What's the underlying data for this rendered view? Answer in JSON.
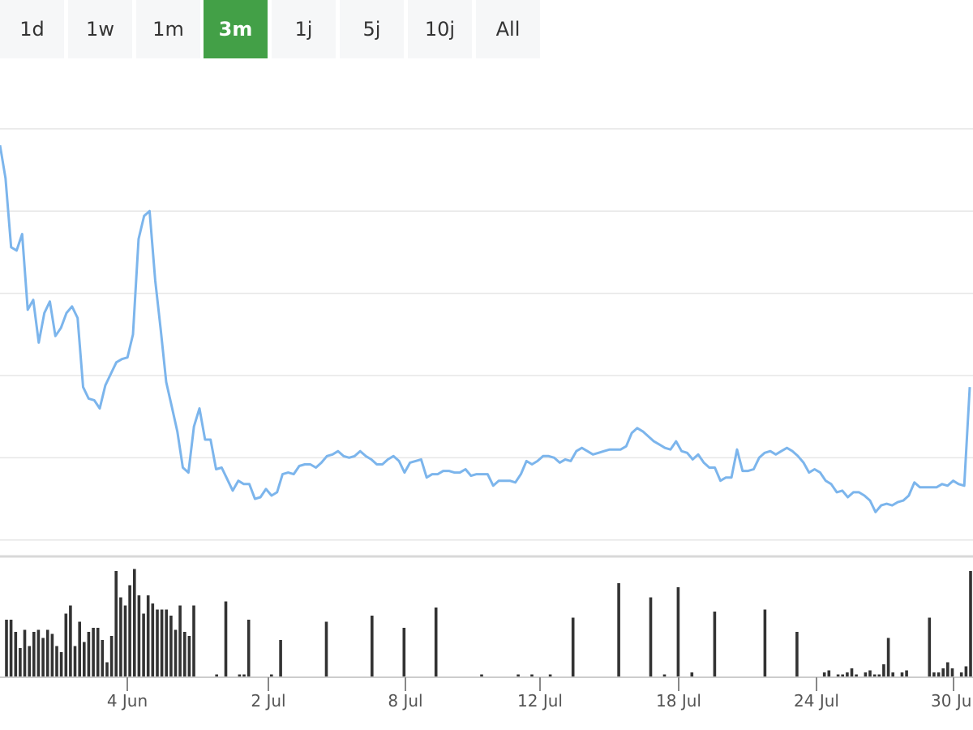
{
  "range_selector": {
    "buttons": [
      {
        "label": "1d",
        "active": false
      },
      {
        "label": "1w",
        "active": false
      },
      {
        "label": "1m",
        "active": false
      },
      {
        "label": "3m",
        "active": true
      },
      {
        "label": "1j",
        "active": false
      },
      {
        "label": "5j",
        "active": false
      },
      {
        "label": "10j",
        "active": false
      },
      {
        "label": "All",
        "active": false
      }
    ]
  },
  "colors": {
    "active_button": "#43a047",
    "button_bg": "#f6f7f8",
    "price_line": "#7cb5ec",
    "volume_bars": "#333333",
    "gridline": "#e6e6e6"
  },
  "chart_data": {
    "type": "line",
    "series": [
      {
        "values": [
          7.9,
          7.7,
          7.28,
          7.26,
          7.36,
          6.9,
          6.96,
          6.7,
          6.88,
          6.95,
          6.74,
          6.79,
          6.88,
          6.92,
          6.85,
          6.43,
          6.36,
          6.35,
          6.3,
          6.44,
          6.51,
          6.58,
          6.6,
          6.61,
          6.75,
          7.33,
          7.47,
          7.5,
          7.08,
          6.78,
          6.46,
          6.31,
          6.16,
          5.94,
          5.91,
          6.19,
          6.3,
          6.11,
          6.11,
          5.93,
          5.94,
          5.87,
          5.8,
          5.86,
          5.84,
          5.84,
          5.75,
          5.76,
          5.81,
          5.77,
          5.79,
          5.9,
          5.91,
          5.9,
          5.95,
          5.96,
          5.96,
          5.94,
          5.97,
          6.01,
          6.02,
          6.04,
          6.01,
          6.0,
          6.01,
          6.04,
          6.01,
          5.99,
          5.96,
          5.96,
          5.99,
          6.01,
          5.98,
          5.91,
          5.97,
          5.98,
          5.99,
          5.88,
          5.9,
          5.9,
          5.92,
          5.92,
          5.91,
          5.91,
          5.93,
          5.89,
          5.9,
          5.9,
          5.9,
          5.83,
          5.86,
          5.86,
          5.86,
          5.85,
          5.9,
          5.98,
          5.96,
          5.98,
          6.01,
          6.01,
          6.0,
          5.97,
          5.99,
          5.98,
          6.04,
          6.06,
          6.04,
          6.02,
          6.03,
          6.04,
          6.05,
          6.05,
          6.05,
          6.07,
          6.15,
          6.18,
          6.16,
          6.13,
          6.1,
          6.08,
          6.06,
          6.05,
          6.1,
          6.04,
          6.03,
          5.99,
          6.02,
          5.97,
          5.94,
          5.94,
          5.86,
          5.88,
          5.88,
          6.05,
          5.92,
          5.92,
          5.93,
          6.0,
          6.03,
          6.04,
          6.02,
          6.04,
          6.06,
          6.04,
          6.01,
          5.97,
          5.91,
          5.93,
          5.91,
          5.86,
          5.84,
          5.79,
          5.8,
          5.76,
          5.79,
          5.79,
          5.77,
          5.74,
          5.67,
          5.71,
          5.72,
          5.71,
          5.73,
          5.74,
          5.77,
          5.85,
          5.82,
          5.82,
          5.82,
          5.82,
          5.84,
          5.83,
          5.86,
          5.84,
          5.83,
          6.43
        ],
        "x_start": "2025-05-31",
        "x_end": "2025-07-31"
      }
    ],
    "volume": [
      28,
      28,
      22,
      14,
      23,
      15,
      22,
      23,
      19,
      23,
      21,
      15,
      12,
      31,
      35,
      15,
      27,
      17,
      22,
      24,
      24,
      18,
      7,
      20,
      52,
      39,
      35,
      45,
      53,
      40,
      31,
      40,
      36,
      33,
      33,
      33,
      30,
      23,
      35,
      22,
      20,
      35,
      0,
      0,
      0,
      0,
      1,
      0,
      37,
      0,
      0,
      1,
      1,
      28,
      0,
      0,
      0,
      0,
      1,
      0,
      18,
      0,
      0,
      0,
      0,
      0,
      0,
      0,
      0,
      0,
      27,
      0,
      0,
      0,
      0,
      0,
      0,
      0,
      0,
      0,
      30,
      0,
      0,
      0,
      0,
      0,
      0,
      24,
      0,
      0,
      0,
      0,
      0,
      0,
      34,
      0,
      0,
      0,
      0,
      0,
      0,
      0,
      0,
      0,
      1,
      0,
      0,
      0,
      0,
      0,
      0,
      0,
      1,
      0,
      0,
      1,
      0,
      0,
      0,
      1,
      0,
      0,
      0,
      0,
      29,
      0,
      0,
      0,
      0,
      0,
      0,
      0,
      0,
      0,
      46,
      0,
      0,
      0,
      0,
      0,
      0,
      39,
      0,
      0,
      1,
      0,
      0,
      44,
      0,
      0,
      2,
      0,
      0,
      0,
      0,
      32,
      0,
      0,
      0,
      0,
      0,
      0,
      0,
      0,
      0,
      0,
      33,
      0,
      0,
      0,
      0,
      0,
      0,
      22,
      0,
      0,
      0,
      0,
      0,
      2,
      3,
      0,
      1,
      1,
      2,
      4,
      1,
      0,
      2,
      3,
      1,
      1,
      6,
      19,
      2,
      0,
      2,
      3,
      0,
      0,
      0,
      0,
      29,
      2,
      2,
      4,
      7,
      4,
      0,
      2,
      5,
      52
    ],
    "x_ticks": [
      "4 Jun",
      "2 Jul",
      "8 Jul",
      "12 Jul",
      "18 Jul",
      "24 Jul",
      "30 Jul"
    ],
    "ylim": [
      5.4,
      8.3
    ],
    "grid": true,
    "legend": "none"
  }
}
